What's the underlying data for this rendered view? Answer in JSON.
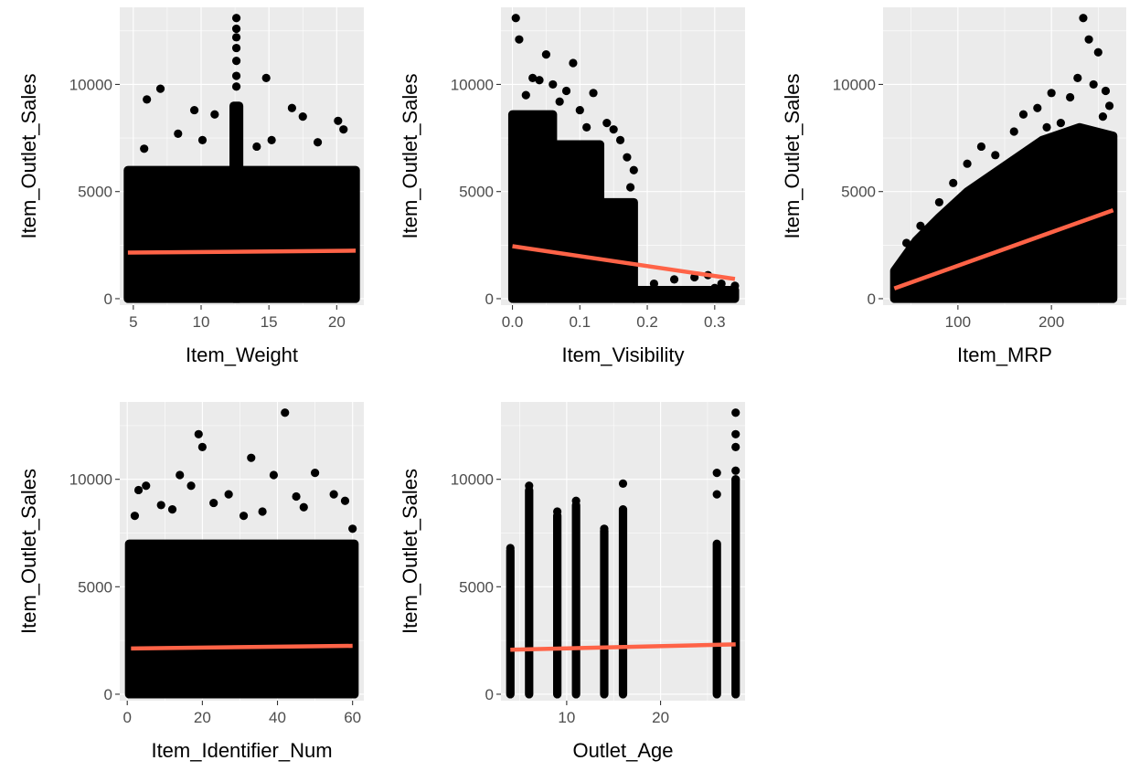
{
  "figure": {
    "background": "#ffffff",
    "panel_background": "#ebebeb",
    "grid_color": "#ffffff",
    "point_color": "#000000",
    "fit_line_color": "#ff6347"
  },
  "chart_data": [
    {
      "type": "scatter",
      "xlabel": "Item_Weight",
      "ylabel": "Item_Outlet_Sales",
      "xlim": [
        4,
        22
      ],
      "ylim": [
        -300,
        13600
      ],
      "x_ticks": [
        5,
        10,
        15,
        20
      ],
      "x_tick_labels": [
        "5",
        "10",
        "15",
        "20"
      ],
      "y_ticks": [
        0,
        5000,
        10000
      ],
      "y_tick_labels": [
        "0",
        "5000",
        "10000"
      ],
      "grid": true,
      "points": [
        [
          6,
          9300
        ],
        [
          7,
          9800
        ],
        [
          9.5,
          8800
        ],
        [
          11,
          8600
        ],
        [
          12.6,
          13100
        ],
        [
          12.6,
          12600
        ],
        [
          12.6,
          12200
        ],
        [
          12.6,
          11700
        ],
        [
          12.6,
          11100
        ],
        [
          12.6,
          10400
        ],
        [
          12.6,
          9900
        ],
        [
          14.8,
          10300
        ],
        [
          16.7,
          8900
        ],
        [
          17.5,
          8500
        ],
        [
          20.1,
          8300
        ],
        [
          20.5,
          7900
        ],
        [
          8.3,
          7700
        ],
        [
          10.1,
          7400
        ],
        [
          15.2,
          7400
        ],
        [
          18.6,
          7300
        ],
        [
          5.8,
          7000
        ],
        [
          14.1,
          7100
        ]
      ],
      "bands": [
        {
          "x_min": 4.6,
          "x_max": 21.4,
          "y_min": 0,
          "y_max": 6000
        },
        {
          "x_min": 12.4,
          "x_max": 12.8,
          "y_min": 0,
          "y_max": 9000
        }
      ],
      "fit_line": {
        "x": [
          4.6,
          21.4
        ],
        "y": [
          2150,
          2240
        ]
      }
    },
    {
      "type": "scatter",
      "xlabel": "Item_Visibility",
      "ylabel": "Item_Outlet_Sales",
      "xlim": [
        -0.017,
        0.345
      ],
      "ylim": [
        -300,
        13600
      ],
      "x_ticks": [
        0,
        0.1,
        0.2,
        0.3
      ],
      "x_tick_labels": [
        "0.0",
        "0.1",
        "0.2",
        "0.3"
      ],
      "y_ticks": [
        0,
        5000,
        10000
      ],
      "y_tick_labels": [
        "0",
        "5000",
        "10000"
      ],
      "grid": true,
      "points": [
        [
          0.005,
          13100
        ],
        [
          0.01,
          12100
        ],
        [
          0.03,
          10300
        ],
        [
          0.04,
          10200
        ],
        [
          0.05,
          11400
        ],
        [
          0.08,
          9700
        ],
        [
          0.06,
          10000
        ],
        [
          0.09,
          11000
        ],
        [
          0.1,
          8800
        ],
        [
          0.12,
          9600
        ],
        [
          0.14,
          8200
        ],
        [
          0.15,
          7900
        ],
        [
          0.16,
          7400
        ],
        [
          0.17,
          6600
        ],
        [
          0.18,
          6000
        ],
        [
          0.175,
          5200
        ],
        [
          0.21,
          700
        ],
        [
          0.24,
          900
        ],
        [
          0.27,
          1000
        ],
        [
          0.29,
          1100
        ],
        [
          0.31,
          700
        ],
        [
          0.33,
          600
        ],
        [
          0.32,
          200
        ],
        [
          0.22,
          300
        ],
        [
          0.26,
          400
        ],
        [
          0.3,
          500
        ],
        [
          0.13,
          7000
        ],
        [
          0.11,
          8000
        ],
        [
          0.07,
          9200
        ],
        [
          0.02,
          9500
        ]
      ],
      "bands": [
        {
          "x_min": 0.0,
          "x_max": 0.18,
          "y_min": 0,
          "y_max": 4500
        },
        {
          "x_min": 0.0,
          "x_max": 0.13,
          "y_min": 4500,
          "y_max": 7200
        },
        {
          "x_min": 0.0,
          "x_max": 0.06,
          "y_min": 7200,
          "y_max": 8600
        },
        {
          "x_min": 0.18,
          "x_max": 0.33,
          "y_min": 0,
          "y_max": 400
        }
      ],
      "fit_line": {
        "x": [
          0.0,
          0.33
        ],
        "y": [
          2450,
          920
        ]
      }
    },
    {
      "type": "scatter",
      "xlabel": "Item_MRP",
      "ylabel": "Item_Outlet_Sales",
      "xlim": [
        20,
        280
      ],
      "ylim": [
        -300,
        13600
      ],
      "x_ticks": [
        100,
        200
      ],
      "x_tick_labels": [
        "100",
        "200"
      ],
      "y_ticks": [
        0,
        5000,
        10000
      ],
      "y_tick_labels": [
        "0",
        "5000",
        "10000"
      ],
      "grid": true,
      "points": [
        [
          234,
          13100
        ],
        [
          240,
          12100
        ],
        [
          250,
          11500
        ],
        [
          228,
          10300
        ],
        [
          245,
          10000
        ],
        [
          258,
          9700
        ],
        [
          220,
          9400
        ],
        [
          200,
          9600
        ],
        [
          185,
          8900
        ],
        [
          170,
          8600
        ],
        [
          160,
          7800
        ],
        [
          125,
          7100
        ],
        [
          140,
          6700
        ],
        [
          110,
          6300
        ],
        [
          95,
          5400
        ],
        [
          80,
          4500
        ],
        [
          60,
          3400
        ],
        [
          45,
          2600
        ],
        [
          255,
          8500
        ],
        [
          262,
          9000
        ],
        [
          210,
          8200
        ],
        [
          195,
          8000
        ]
      ],
      "polygon": [
        [
          32,
          0
        ],
        [
          266,
          0
        ],
        [
          266,
          7600
        ],
        [
          230,
          8000
        ],
        [
          190,
          7400
        ],
        [
          150,
          6200
        ],
        [
          110,
          5000
        ],
        [
          80,
          3800
        ],
        [
          55,
          2700
        ],
        [
          32,
          1300
        ]
      ],
      "fit_line": {
        "x": [
          32,
          266
        ],
        "y": [
          480,
          4130
        ]
      }
    },
    {
      "type": "scatter",
      "xlabel": "Item_Identifier_Num",
      "ylabel": "Item_Outlet_Sales",
      "xlim": [
        -2,
        63
      ],
      "ylim": [
        -300,
        13600
      ],
      "x_ticks": [
        0,
        20,
        40,
        60
      ],
      "x_tick_labels": [
        "0",
        "20",
        "40",
        "60"
      ],
      "y_ticks": [
        0,
        5000,
        10000
      ],
      "y_tick_labels": [
        "0",
        "5000",
        "10000"
      ],
      "grid": true,
      "points": [
        [
          42,
          13100
        ],
        [
          19,
          12100
        ],
        [
          20,
          11500
        ],
        [
          33,
          11000
        ],
        [
          14,
          10200
        ],
        [
          39,
          10200
        ],
        [
          50,
          10300
        ],
        [
          3,
          9500
        ],
        [
          5,
          9700
        ],
        [
          17,
          9700
        ],
        [
          27,
          9300
        ],
        [
          45,
          9200
        ],
        [
          55,
          9300
        ],
        [
          58,
          9000
        ],
        [
          9,
          8800
        ],
        [
          23,
          8900
        ],
        [
          12,
          8600
        ],
        [
          36,
          8500
        ],
        [
          47,
          8700
        ],
        [
          31,
          8300
        ],
        [
          2,
          8300
        ],
        [
          60,
          7700
        ]
      ],
      "bands": [
        {
          "x_min": 0.5,
          "x_max": 60.5,
          "y_min": 0,
          "y_max": 7000
        }
      ],
      "fit_line": {
        "x": [
          1,
          60
        ],
        "y": [
          2130,
          2250
        ]
      }
    },
    {
      "type": "scatter",
      "xlabel": "Outlet_Age",
      "ylabel": "Item_Outlet_Sales",
      "xlim": [
        3,
        29
      ],
      "ylim": [
        -300,
        13600
      ],
      "x_ticks": [
        10,
        20
      ],
      "x_tick_labels": [
        "10",
        "20"
      ],
      "y_ticks": [
        0,
        5000,
        10000
      ],
      "y_tick_labels": [
        "0",
        "5000",
        "10000"
      ],
      "grid": true,
      "points": [
        [
          28,
          13100
        ],
        [
          28,
          12100
        ],
        [
          28,
          11500
        ],
        [
          26,
          10300
        ],
        [
          26,
          9300
        ],
        [
          6,
          9700
        ],
        [
          16,
          9800
        ],
        [
          11,
          9000
        ],
        [
          9,
          8500
        ],
        [
          14,
          7700
        ],
        [
          4,
          6800
        ],
        [
          28,
          10400
        ],
        [
          28,
          10000
        ]
      ],
      "columns": [
        {
          "x": 4,
          "y_max": 6700
        },
        {
          "x": 6,
          "y_max": 9500
        },
        {
          "x": 9,
          "y_max": 8300
        },
        {
          "x": 11,
          "y_max": 8800
        },
        {
          "x": 14,
          "y_max": 7600
        },
        {
          "x": 16,
          "y_max": 8600
        },
        {
          "x": 26,
          "y_max": 7000
        },
        {
          "x": 28,
          "y_max": 10000
        }
      ],
      "fit_line": {
        "x": [
          4,
          28
        ],
        "y": [
          2070,
          2320
        ]
      }
    }
  ]
}
